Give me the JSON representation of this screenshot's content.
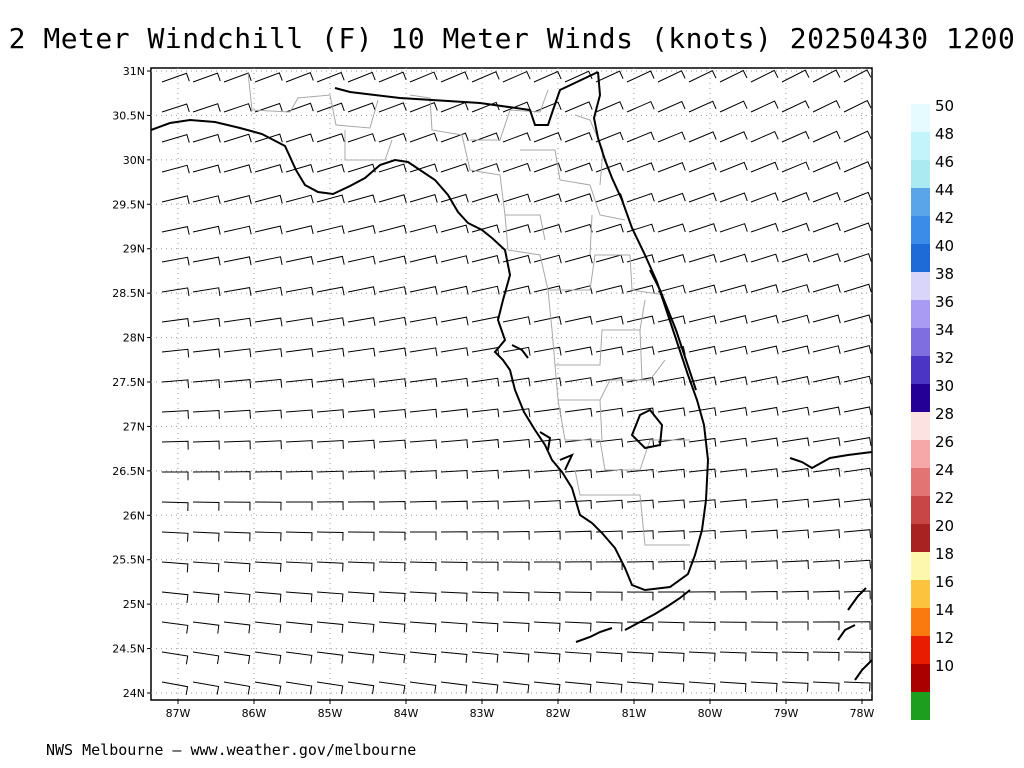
{
  "title": "2 Meter Windchill (F) 10 Meter Winds (knots) 20250430 1200",
  "footer": "NWS Melbourne — www.weather.gov/melbourne",
  "latitude_labels": [
    "31N",
    "30.5N",
    "30N",
    "29.5N",
    "29N",
    "28.5N",
    "28N",
    "27.5N",
    "27N",
    "26.5N",
    "26N",
    "25.5N",
    "25N",
    "24.5N",
    "24N"
  ],
  "longitude_labels": [
    "87W",
    "86W",
    "85W",
    "84W",
    "83W",
    "82W",
    "81W",
    "80W",
    "79W",
    "78W"
  ],
  "colorbar": {
    "labels": [
      "50",
      "48",
      "46",
      "44",
      "42",
      "40",
      "38",
      "36",
      "34",
      "32",
      "30",
      "28",
      "26",
      "24",
      "22",
      "20",
      "18",
      "16",
      "14",
      "12",
      "10"
    ],
    "colors": [
      "#e6fbff",
      "#c3f4fb",
      "#aaeaf0",
      "#5aa5ea",
      "#3b8ce8",
      "#1e6ad6",
      "#d8d4fa",
      "#a99af4",
      "#7e6ee0",
      "#4a35c4",
      "#240096",
      "#fde2e2",
      "#f6a7a7",
      "#e27474",
      "#c94646",
      "#a82222",
      "#fdf7ad",
      "#fbc33e",
      "#fb7a10",
      "#e81c00",
      "#aa0000",
      "#1e9e1e"
    ]
  },
  "map_layers": {
    "coastline_color": "#000000",
    "county_border_color": "#a8a8a8",
    "gridline_color": "#9a9a9a",
    "wind_barb_color": "#000000"
  }
}
